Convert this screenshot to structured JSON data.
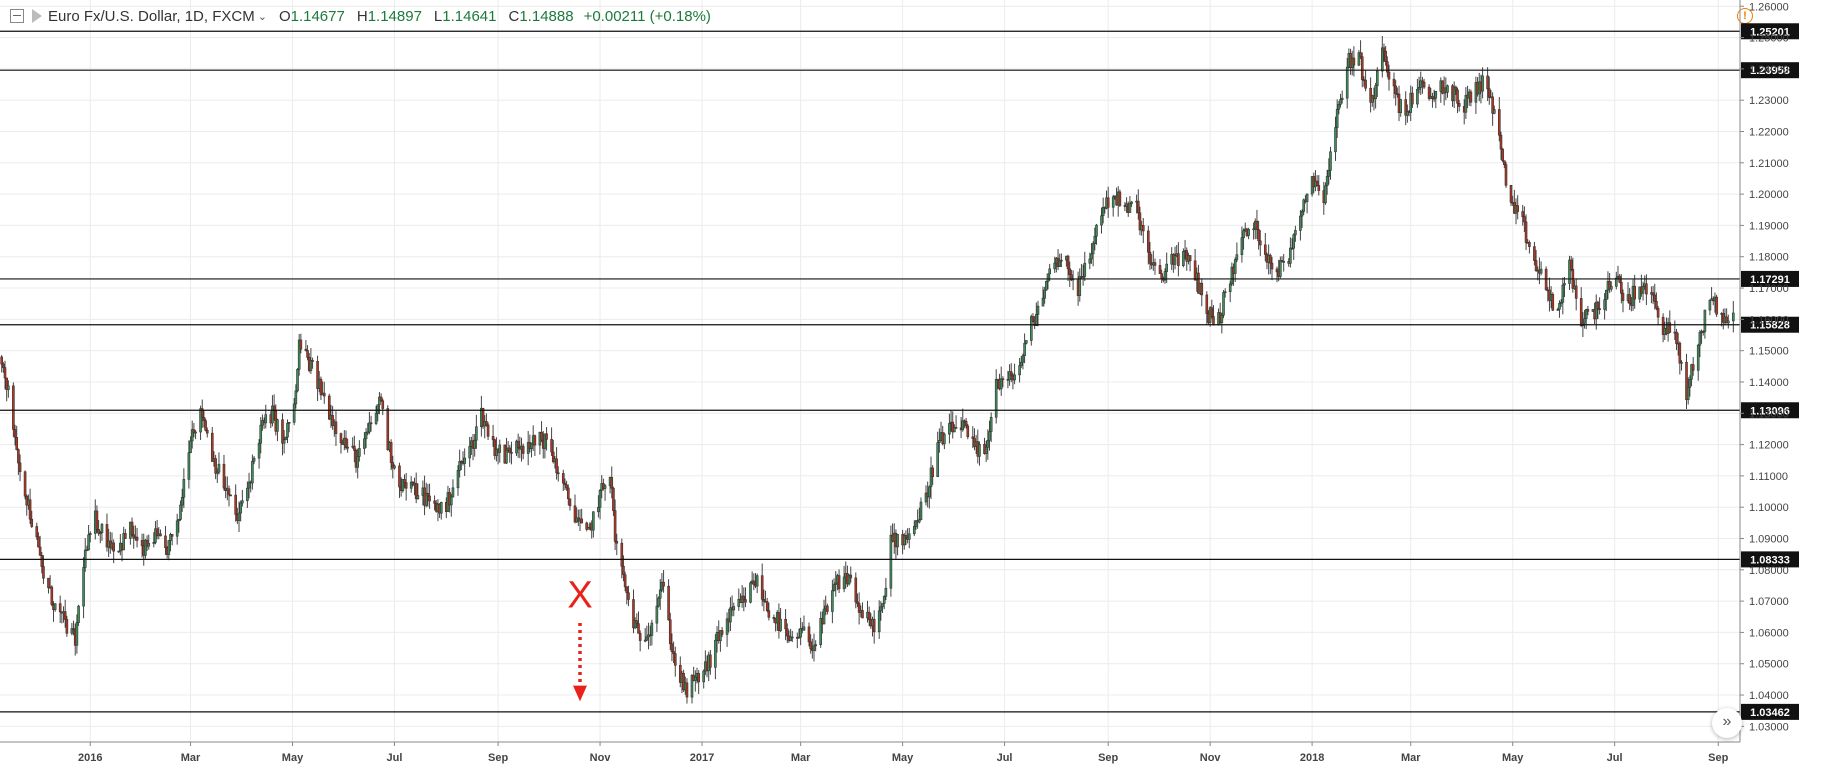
{
  "header": {
    "symbol": "Euro Fx/U.S. Dollar, 1D, FXCM",
    "caret": "⌄",
    "open": "1.14677",
    "high": "1.14897",
    "low": "1.14641",
    "close": "1.14888",
    "change": "+0.00211 (+0.18%)",
    "open_key": "O",
    "high_key": "H",
    "low_key": "L",
    "close_key": "C"
  },
  "icons": {
    "collapse": "collapse-icon",
    "flag": "flag-icon",
    "warning": "warning-icon",
    "goto": "double-chevron-right-icon"
  },
  "warning_glyph": "!",
  "goto_glyph": "»",
  "annotation": {
    "text": "X",
    "color": "#e8221b",
    "arrow": "dotted-down-arrow"
  },
  "chart_data": {
    "type": "candlestick",
    "title": "",
    "xlabel": "",
    "ylabel": "",
    "ylim": [
      1.025,
      1.262
    ],
    "xlim": [
      "2015-11-08",
      "2018-09-14"
    ],
    "grid": true,
    "y_ticks": [
      "1.03000",
      "1.04000",
      "1.05000",
      "1.06000",
      "1.07000",
      "1.08000",
      "1.09000",
      "1.10000",
      "1.11000",
      "1.12000",
      "1.13000",
      "1.14000",
      "1.15000",
      "1.16000",
      "1.17000",
      "1.18000",
      "1.19000",
      "1.20000",
      "1.21000",
      "1.22000",
      "1.23000",
      "1.24000",
      "1.25000",
      "1.26000"
    ],
    "x_ticks": [
      {
        "label": "2016",
        "date": "2016-01-01"
      },
      {
        "label": "Mar",
        "date": "2016-03-01"
      },
      {
        "label": "May",
        "date": "2016-05-01"
      },
      {
        "label": "Jul",
        "date": "2016-07-01"
      },
      {
        "label": "Sep",
        "date": "2016-09-01"
      },
      {
        "label": "Nov",
        "date": "2016-11-01"
      },
      {
        "label": "2017",
        "date": "2017-01-01"
      },
      {
        "label": "Mar",
        "date": "2017-03-01"
      },
      {
        "label": "May",
        "date": "2017-05-01"
      },
      {
        "label": "Jul",
        "date": "2017-07-01"
      },
      {
        "label": "Sep",
        "date": "2017-09-01"
      },
      {
        "label": "Nov",
        "date": "2017-11-01"
      },
      {
        "label": "2018",
        "date": "2018-01-01"
      },
      {
        "label": "Mar",
        "date": "2018-03-01"
      },
      {
        "label": "May",
        "date": "2018-05-01"
      },
      {
        "label": "Jul",
        "date": "2018-07-01"
      },
      {
        "label": "Sep",
        "date": "2018-09-01"
      }
    ],
    "levels": [
      {
        "value": 1.25201,
        "label": "1.25201"
      },
      {
        "value": 1.23958,
        "label": "1.23958"
      },
      {
        "value": 1.17291,
        "label": "1.17291"
      },
      {
        "value": 1.15828,
        "label": "1.15828"
      },
      {
        "value": 1.13096,
        "label": "1.13096"
      },
      {
        "value": 1.08333,
        "label": "1.08333"
      },
      {
        "value": 1.03462,
        "label": "1.03462"
      }
    ],
    "path": [
      [
        "2015-11-09",
        1.148
      ],
      [
        "2015-11-13",
        1.137
      ],
      [
        "2015-11-20",
        1.113
      ],
      [
        "2015-11-27",
        1.096
      ],
      [
        "2015-12-04",
        1.078
      ],
      [
        "2015-12-11",
        1.068
      ],
      [
        "2015-12-18",
        1.062
      ],
      [
        "2015-12-23",
        1.057
      ],
      [
        "2015-12-28",
        1.083
      ],
      [
        "2016-01-04",
        1.096
      ],
      [
        "2016-01-11",
        1.09
      ],
      [
        "2016-01-18",
        1.087
      ],
      [
        "2016-01-25",
        1.093
      ],
      [
        "2016-02-01",
        1.085
      ],
      [
        "2016-02-08",
        1.091
      ],
      [
        "2016-02-15",
        1.086
      ],
      [
        "2016-02-22",
        1.093
      ],
      [
        "2016-03-01",
        1.124
      ],
      [
        "2016-03-08",
        1.13
      ],
      [
        "2016-03-15",
        1.115
      ],
      [
        "2016-03-22",
        1.106
      ],
      [
        "2016-03-29",
        1.096
      ],
      [
        "2016-04-05",
        1.108
      ],
      [
        "2016-04-12",
        1.125
      ],
      [
        "2016-04-19",
        1.13
      ],
      [
        "2016-04-26",
        1.12
      ],
      [
        "2016-05-03",
        1.136
      ],
      [
        "2016-05-05",
        1.152
      ],
      [
        "2016-05-12",
        1.145
      ],
      [
        "2016-05-19",
        1.136
      ],
      [
        "2016-05-26",
        1.127
      ],
      [
        "2016-06-02",
        1.12
      ],
      [
        "2016-06-09",
        1.115
      ],
      [
        "2016-06-16",
        1.125
      ],
      [
        "2016-06-23",
        1.135
      ],
      [
        "2016-06-27",
        1.12
      ],
      [
        "2016-07-04",
        1.108
      ],
      [
        "2016-07-11",
        1.106
      ],
      [
        "2016-07-18",
        1.104
      ],
      [
        "2016-07-25",
        1.1
      ],
      [
        "2016-08-01",
        1.1
      ],
      [
        "2016-08-08",
        1.112
      ],
      [
        "2016-08-15",
        1.118
      ],
      [
        "2016-08-22",
        1.13
      ],
      [
        "2016-08-29",
        1.12
      ],
      [
        "2016-09-05",
        1.116
      ],
      [
        "2016-09-12",
        1.122
      ],
      [
        "2016-09-19",
        1.118
      ],
      [
        "2016-09-26",
        1.123
      ],
      [
        "2016-10-03",
        1.118
      ],
      [
        "2016-10-10",
        1.106
      ],
      [
        "2016-10-17",
        1.098
      ],
      [
        "2016-10-24",
        1.09
      ],
      [
        "2016-10-31",
        1.102
      ],
      [
        "2016-11-07",
        1.112
      ],
      [
        "2016-11-10",
        1.09
      ],
      [
        "2016-11-17",
        1.072
      ],
      [
        "2016-11-24",
        1.058
      ],
      [
        "2016-12-01",
        1.062
      ],
      [
        "2016-12-08",
        1.076
      ],
      [
        "2016-12-15",
        1.052
      ],
      [
        "2016-12-22",
        1.041
      ],
      [
        "2016-12-29",
        1.045
      ],
      [
        "2017-01-05",
        1.05
      ],
      [
        "2017-01-12",
        1.06
      ],
      [
        "2017-01-19",
        1.066
      ],
      [
        "2017-01-26",
        1.07
      ],
      [
        "2017-02-02",
        1.077
      ],
      [
        "2017-02-09",
        1.068
      ],
      [
        "2017-02-16",
        1.063
      ],
      [
        "2017-02-23",
        1.056
      ],
      [
        "2017-03-02",
        1.06
      ],
      [
        "2017-03-09",
        1.056
      ],
      [
        "2017-03-16",
        1.066
      ],
      [
        "2017-03-23",
        1.076
      ],
      [
        "2017-03-30",
        1.078
      ],
      [
        "2017-04-06",
        1.066
      ],
      [
        "2017-04-13",
        1.062
      ],
      [
        "2017-04-20",
        1.069
      ],
      [
        "2017-04-24",
        1.09
      ],
      [
        "2017-05-01",
        1.09
      ],
      [
        "2017-05-08",
        1.094
      ],
      [
        "2017-05-15",
        1.103
      ],
      [
        "2017-05-22",
        1.12
      ],
      [
        "2017-05-29",
        1.124
      ],
      [
        "2017-06-05",
        1.127
      ],
      [
        "2017-06-12",
        1.119
      ],
      [
        "2017-06-19",
        1.116
      ],
      [
        "2017-06-26",
        1.14
      ],
      [
        "2017-07-03",
        1.14
      ],
      [
        "2017-07-10",
        1.145
      ],
      [
        "2017-07-17",
        1.158
      ],
      [
        "2017-07-24",
        1.168
      ],
      [
        "2017-07-31",
        1.18
      ],
      [
        "2017-08-07",
        1.178
      ],
      [
        "2017-08-14",
        1.17
      ],
      [
        "2017-08-21",
        1.18
      ],
      [
        "2017-08-28",
        1.195
      ],
      [
        "2017-09-04",
        1.2
      ],
      [
        "2017-09-11",
        1.195
      ],
      [
        "2017-09-18",
        1.196
      ],
      [
        "2017-09-25",
        1.18
      ],
      [
        "2017-10-02",
        1.172
      ],
      [
        "2017-10-09",
        1.18
      ],
      [
        "2017-10-16",
        1.18
      ],
      [
        "2017-10-23",
        1.175
      ],
      [
        "2017-10-30",
        1.162
      ],
      [
        "2017-11-06",
        1.16
      ],
      [
        "2017-11-13",
        1.173
      ],
      [
        "2017-11-20",
        1.186
      ],
      [
        "2017-11-27",
        1.19
      ],
      [
        "2017-12-04",
        1.182
      ],
      [
        "2017-12-11",
        1.175
      ],
      [
        "2017-12-18",
        1.18
      ],
      [
        "2017-12-25",
        1.195
      ],
      [
        "2018-01-01",
        1.205
      ],
      [
        "2018-01-08",
        1.2
      ],
      [
        "2018-01-15",
        1.222
      ],
      [
        "2018-01-22",
        1.242
      ],
      [
        "2018-01-29",
        1.244
      ],
      [
        "2018-02-05",
        1.227
      ],
      [
        "2018-02-12",
        1.249
      ],
      [
        "2018-02-19",
        1.232
      ],
      [
        "2018-02-26",
        1.225
      ],
      [
        "2018-03-05",
        1.236
      ],
      [
        "2018-03-12",
        1.229
      ],
      [
        "2018-03-19",
        1.235
      ],
      [
        "2018-03-26",
        1.232
      ],
      [
        "2018-04-02",
        1.228
      ],
      [
        "2018-04-09",
        1.234
      ],
      [
        "2018-04-16",
        1.236
      ],
      [
        "2018-04-23",
        1.217
      ],
      [
        "2018-04-30",
        1.196
      ],
      [
        "2018-05-07",
        1.19
      ],
      [
        "2018-05-14",
        1.178
      ],
      [
        "2018-05-21",
        1.17
      ],
      [
        "2018-05-28",
        1.162
      ],
      [
        "2018-06-04",
        1.177
      ],
      [
        "2018-06-11",
        1.16
      ],
      [
        "2018-06-18",
        1.162
      ],
      [
        "2018-06-25",
        1.168
      ],
      [
        "2018-07-02",
        1.172
      ],
      [
        "2018-07-09",
        1.166
      ],
      [
        "2018-07-16",
        1.17
      ],
      [
        "2018-07-23",
        1.168
      ],
      [
        "2018-07-30",
        1.158
      ],
      [
        "2018-08-06",
        1.155
      ],
      [
        "2018-08-13",
        1.136
      ],
      [
        "2018-08-20",
        1.152
      ],
      [
        "2018-08-27",
        1.168
      ],
      [
        "2018-09-03",
        1.16
      ],
      [
        "2018-09-10",
        1.16
      ]
    ]
  }
}
